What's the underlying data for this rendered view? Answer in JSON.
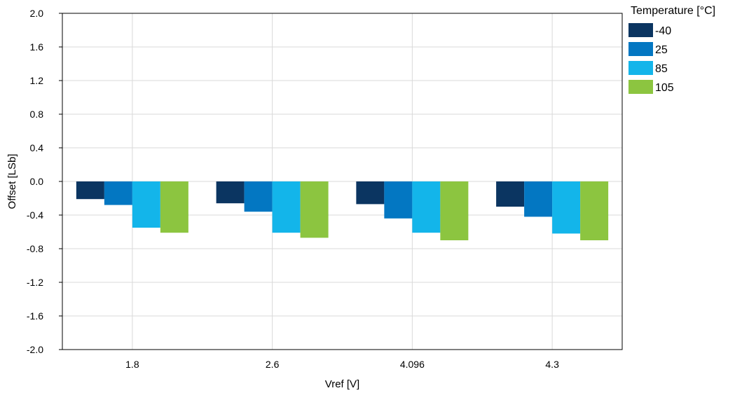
{
  "chart_data": {
    "type": "bar",
    "categories": [
      "1.8",
      "2.6",
      "4.096",
      "4.3"
    ],
    "series": [
      {
        "name": "-40",
        "color": "#0b3561",
        "values": [
          -0.21,
          -0.26,
          -0.27,
          -0.3
        ]
      },
      {
        "name": "25",
        "color": "#0377c2",
        "values": [
          -0.28,
          -0.36,
          -0.44,
          -0.42
        ]
      },
      {
        "name": "85",
        "color": "#13b5ea",
        "values": [
          -0.55,
          -0.61,
          -0.61,
          -0.62
        ]
      },
      {
        "name": "105",
        "color": "#8cc540",
        "values": [
          -0.61,
          -0.67,
          -0.7,
          -0.7
        ]
      }
    ],
    "xlabel": "Vref [V]",
    "ylabel": "Offset [LSb]",
    "ylim": [
      -2.0,
      2.0
    ],
    "yticks": [
      "2.0",
      "1.6",
      "1.2",
      "0.8",
      "0.4",
      "0.0",
      "-0.4",
      "-0.8",
      "-1.2",
      "-1.6",
      "-2.0"
    ],
    "legend_title": "Temperature [°C]",
    "legend_position": "top-right outside",
    "grid": true
  }
}
